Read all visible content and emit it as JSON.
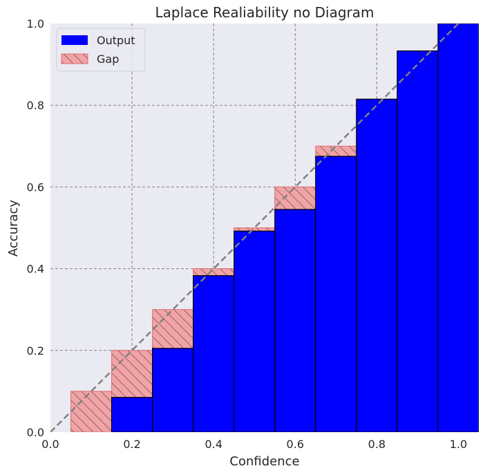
{
  "chart_data": {
    "type": "bar",
    "title": "Laplace Realiability no Diagram",
    "xlabel": "Confidence",
    "ylabel": "Accuracy",
    "xlim": [
      0.0,
      1.05
    ],
    "ylim": [
      0.0,
      1.0
    ],
    "x_ticks": [
      "0.0",
      "0.2",
      "0.4",
      "0.6",
      "0.8",
      "1.0"
    ],
    "x_tick_values": [
      0.0,
      0.2,
      0.4,
      0.6,
      0.8,
      1.0
    ],
    "y_ticks": [
      "0.0",
      "0.2",
      "0.4",
      "0.6",
      "0.8",
      "1.0"
    ],
    "y_tick_values": [
      0.0,
      0.2,
      0.4,
      0.6,
      0.8,
      1.0
    ],
    "bin_width": 0.1,
    "bin_centers": [
      0.1,
      0.2,
      0.3,
      0.4,
      0.5,
      0.6,
      0.7,
      0.8,
      0.9,
      1.0
    ],
    "series": [
      {
        "name": "Output",
        "values": [
          0.0,
          0.085,
          0.205,
          0.383,
          0.492,
          0.545,
          0.675,
          0.815,
          0.933,
          1.0
        ]
      },
      {
        "name": "Gap",
        "values": [
          0.1,
          0.2,
          0.3,
          0.4,
          0.5,
          0.6,
          0.7,
          0.8,
          0.9,
          1.0
        ]
      }
    ],
    "diagonal": {
      "x": [
        0.0,
        1.05
      ],
      "y": [
        0.0,
        1.05
      ],
      "style": "dashed"
    },
    "grid": true,
    "legend_position": "top-left",
    "colors": {
      "output": "#0000ff",
      "gap": "#f2a3a6",
      "gap_edge": "#e46a6e",
      "plot_bg": "#eaeaf2",
      "grid": "#808080",
      "diagonal": "#808080"
    }
  }
}
